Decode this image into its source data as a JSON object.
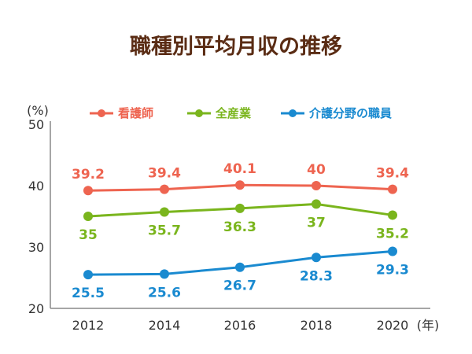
{
  "chart_data": {
    "type": "line",
    "title": "職種別平均月収の推移",
    "ylabel": "(%)",
    "xlabel": "(年)",
    "categories": [
      "2012",
      "2014",
      "2016",
      "2018",
      "2020"
    ],
    "ylim": [
      20,
      50
    ],
    "yticks": [
      "20",
      "30",
      "40",
      "50"
    ],
    "grid": false,
    "legend": "top",
    "series": [
      {
        "name": "看護師",
        "color": "#ee6450",
        "values": [
          39.2,
          39.4,
          40.1,
          40,
          39.4
        ],
        "labels": [
          "39.2",
          "39.4",
          "40.1",
          "40",
          "39.4"
        ],
        "label_pos": "above"
      },
      {
        "name": "全産業",
        "color": "#7ab51d",
        "values": [
          35,
          35.7,
          36.3,
          37,
          35.2
        ],
        "labels": [
          "35",
          "35.7",
          "36.3",
          "37",
          "35.2"
        ],
        "label_pos": "below"
      },
      {
        "name": "介護分野の職員",
        "color": "#1a8ad0",
        "values": [
          25.5,
          25.6,
          26.7,
          28.3,
          29.3
        ],
        "labels": [
          "25.5",
          "25.6",
          "26.7",
          "28.3",
          "29.3"
        ],
        "label_pos": "below"
      }
    ]
  }
}
